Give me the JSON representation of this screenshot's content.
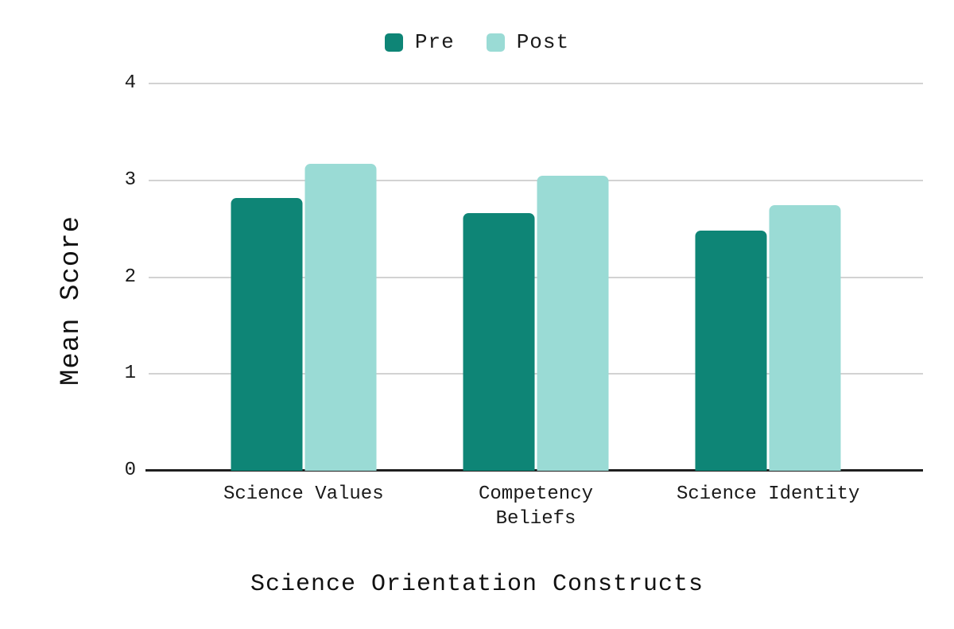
{
  "chart_data": {
    "type": "bar",
    "title": "",
    "xlabel": "Science Orientation Constructs",
    "ylabel": "Mean Score",
    "categories": [
      "Science Values",
      "Competency Beliefs",
      "Science Identity"
    ],
    "series": [
      {
        "name": "Pre",
        "color": "#0E8576",
        "values": [
          2.82,
          2.66,
          2.48
        ]
      },
      {
        "name": "Post",
        "color": "#9ADBD5",
        "values": [
          3.17,
          3.05,
          2.74
        ]
      }
    ],
    "ylim": [
      0,
      4
    ],
    "yticks": [
      0,
      1,
      2,
      3,
      4
    ],
    "grid": true,
    "legend_position": "top",
    "group_centers_pct": [
      20,
      50,
      80
    ],
    "colors": {
      "gridline": "#d2d2d2",
      "axis_line": "#1f1f1f",
      "text": "#1a1a1a"
    }
  }
}
